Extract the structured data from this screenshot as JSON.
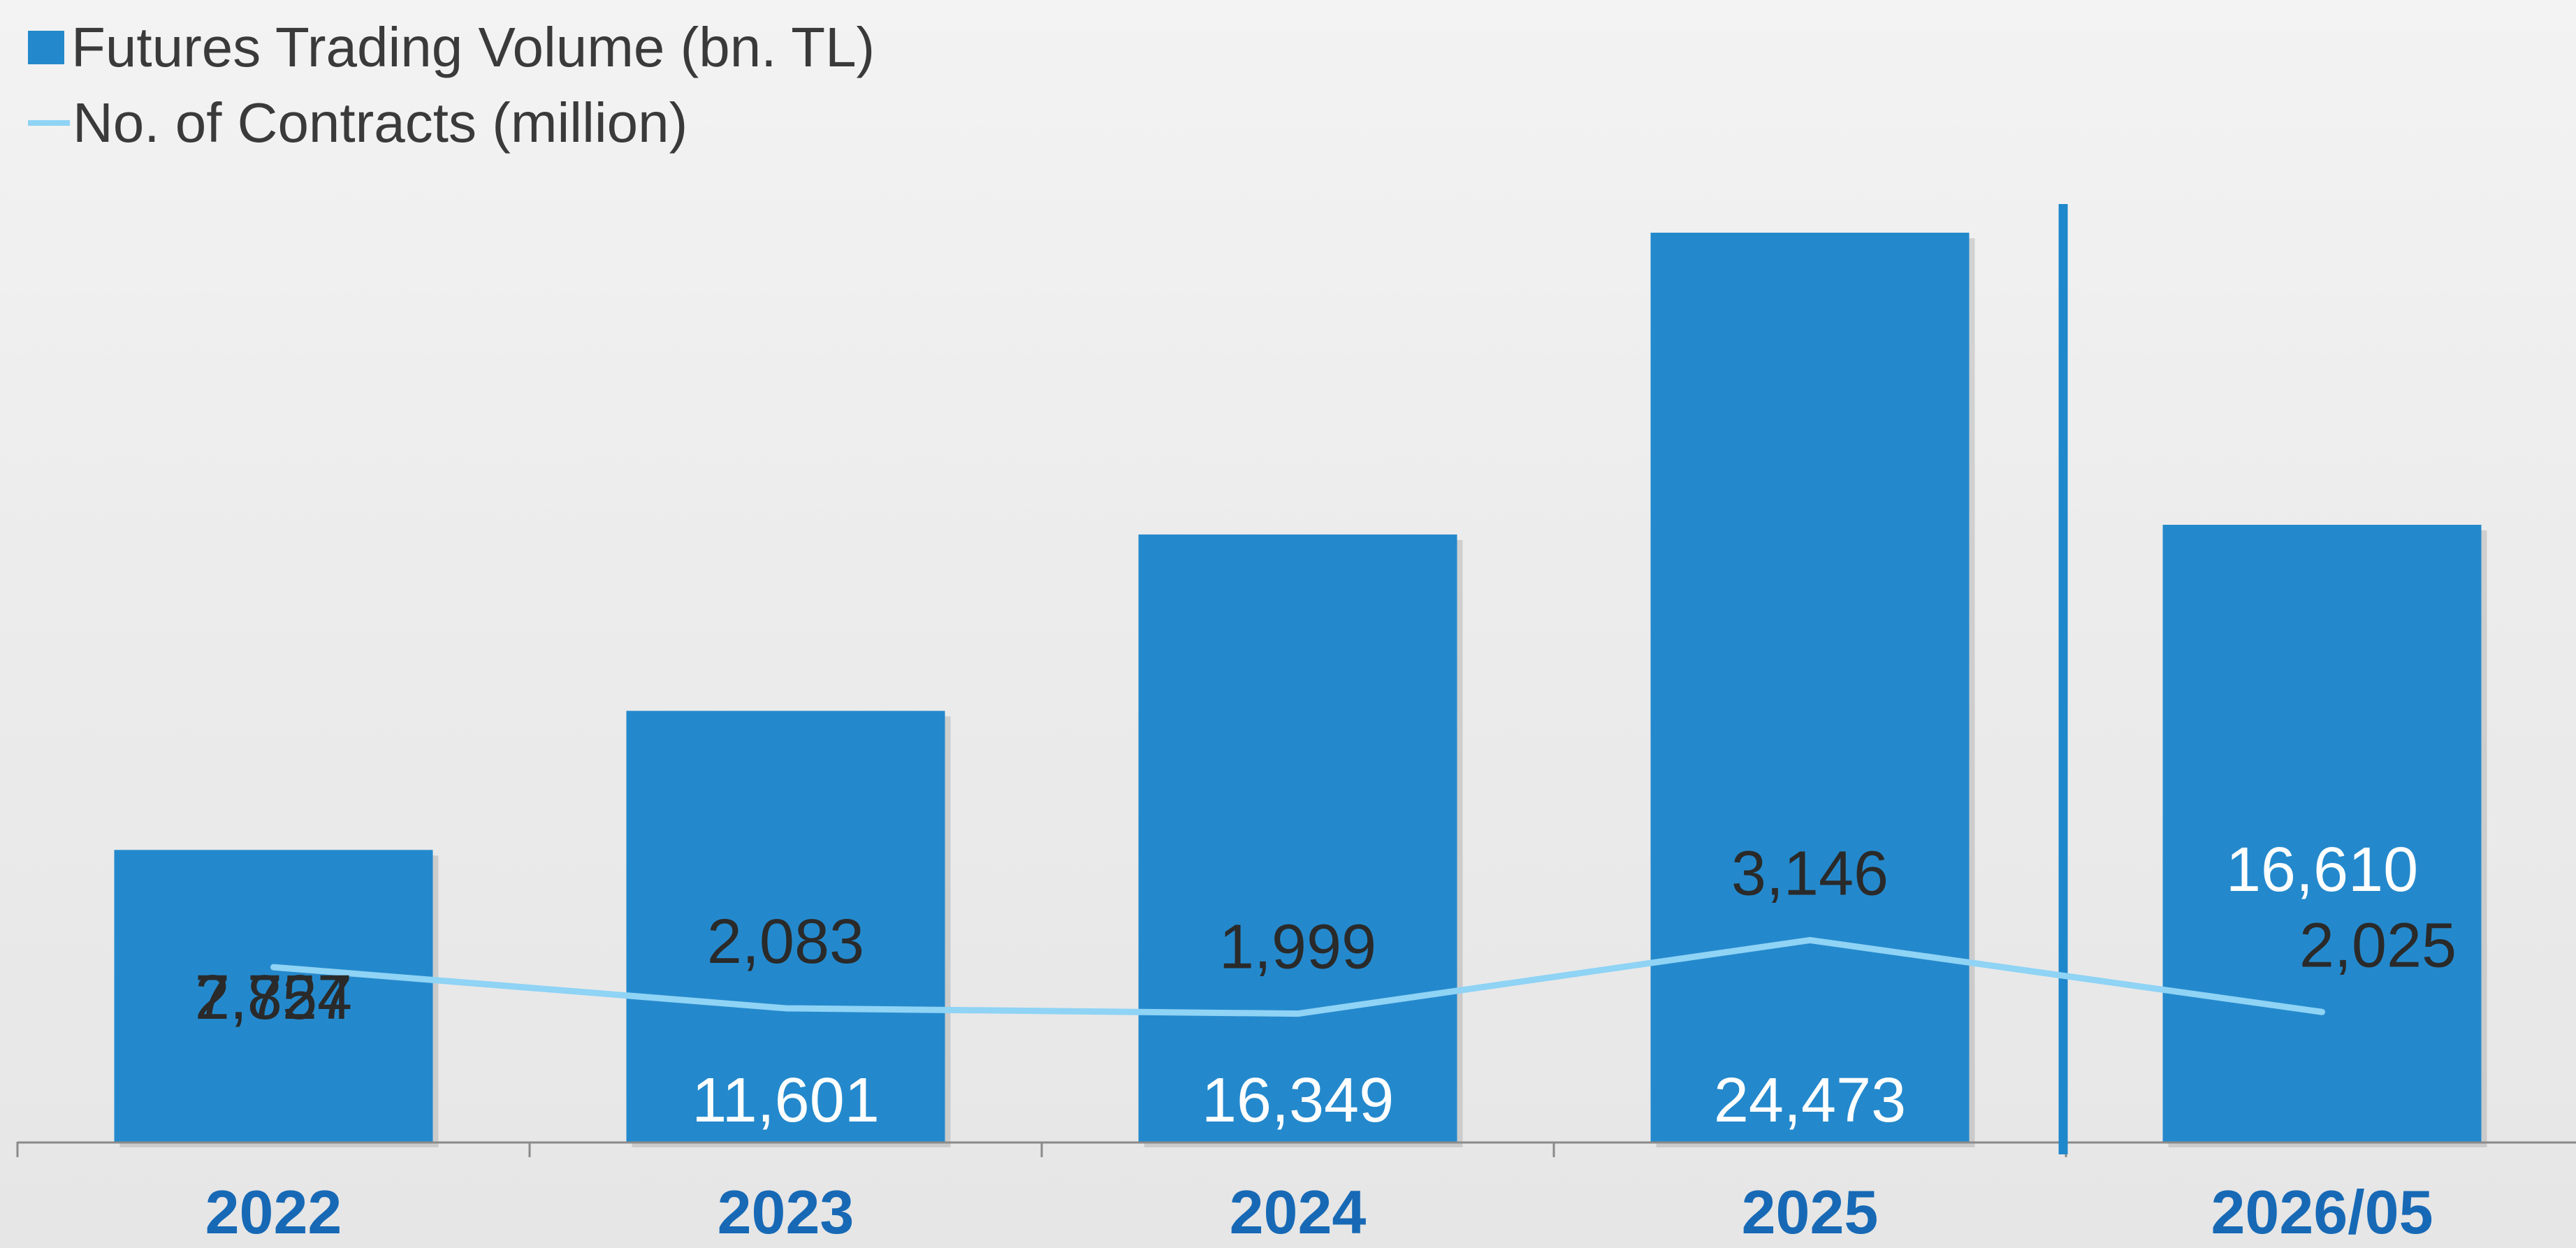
{
  "colors": {
    "bar": "#2489cc",
    "line": "#8fd3f5",
    "category_label": "#1769b5",
    "value_dark": "#2a2a2a",
    "value_light": "#ffffff",
    "divider": "#1f87cb",
    "axis": "#8a8a8a"
  },
  "legend": {
    "bar_label": "Futures Trading Volume (bn. TL)",
    "line_label": "No. of Contracts (million)"
  },
  "chart_data": {
    "type": "bar",
    "categories": [
      "2022",
      "2023",
      "2024",
      "2025",
      "2026/05"
    ],
    "series": [
      {
        "name": "Futures Trading Volume (bn. TL)",
        "type": "bar",
        "values": [
          7857,
          11601,
          16349,
          24473,
          16610
        ],
        "labels": [
          "7,857",
          "11,601",
          "16,349",
          "24,473",
          "16,610"
        ]
      },
      {
        "name": "No. of Contracts (million)",
        "type": "line",
        "values": [
          2724,
          2083,
          1999,
          3146,
          2025
        ],
        "labels": [
          "2,724",
          "2,083",
          "1,999",
          "3,146",
          "2,025"
        ]
      }
    ],
    "bar_ylim": [
      0,
      25000
    ],
    "line_ylim": [
      0,
      14500
    ],
    "xlabel": "",
    "ylabel": "",
    "grid": false,
    "legend_position": "top-left"
  }
}
